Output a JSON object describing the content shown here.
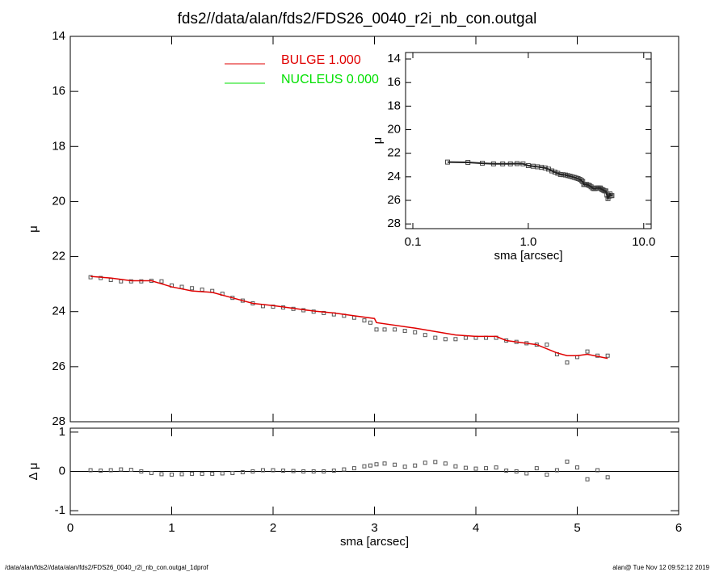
{
  "title": "fds2//data/alan/fds2/FDS26_0040_r2i_nb_con.outgal",
  "footer": {
    "left": "/data/alan/fds2//data/alan/fds2/FDS26_0040_r2i_nb_con.outgal_1dprof",
    "right": "alan@  Tue Nov 12 09:52:12 2019"
  },
  "chart_data": [
    {
      "type": "scatter",
      "ylabel": "μ",
      "xlim": [
        0,
        6
      ],
      "xticks": [
        0,
        1,
        2,
        3,
        4,
        5,
        6
      ],
      "ylim": [
        28,
        14
      ],
      "yticks": [
        14,
        16,
        18,
        20,
        22,
        24,
        26,
        28
      ],
      "x": [
        0.2,
        0.3,
        0.4,
        0.5,
        0.6,
        0.7,
        0.8,
        0.9,
        1.0,
        1.1,
        1.2,
        1.3,
        1.4,
        1.5,
        1.6,
        1.7,
        1.8,
        1.9,
        2.0,
        2.1,
        2.2,
        2.3,
        2.4,
        2.5,
        2.6,
        2.7,
        2.8,
        2.9,
        2.96,
        3.02,
        3.1,
        3.2,
        3.3,
        3.4,
        3.5,
        3.6,
        3.7,
        3.8,
        3.9,
        4.0,
        4.1,
        4.2,
        4.3,
        4.4,
        4.5,
        4.6,
        4.7,
        4.8,
        4.9,
        5.0,
        5.1,
        5.2,
        5.3
      ],
      "values": [
        22.75,
        22.78,
        22.85,
        22.9,
        22.9,
        22.9,
        22.88,
        22.9,
        23.05,
        23.1,
        23.15,
        23.2,
        23.25,
        23.35,
        23.5,
        23.6,
        23.7,
        23.8,
        23.82,
        23.85,
        23.9,
        23.95,
        24.0,
        24.05,
        24.1,
        24.15,
        24.22,
        24.32,
        24.4,
        24.65,
        24.65,
        24.65,
        24.7,
        24.75,
        24.85,
        24.95,
        25.0,
        25.0,
        24.95,
        24.95,
        24.95,
        24.95,
        25.05,
        25.1,
        25.15,
        25.2,
        25.2,
        25.55,
        25.85,
        25.65,
        25.45,
        25.6,
        25.6
      ],
      "color": "#555555",
      "series": [
        {
          "name": "BULGE  1.000",
          "color": "#e00000",
          "x": [
            0.2,
            0.4,
            0.6,
            0.8,
            1.0,
            1.2,
            1.4,
            1.6,
            1.8,
            2.0,
            2.2,
            2.4,
            2.6,
            2.8,
            3.0,
            3.02,
            3.4,
            3.8,
            4.0,
            4.2,
            4.3,
            4.6,
            4.8,
            4.9,
            5.0,
            5.1,
            5.3
          ],
          "values": [
            22.72,
            22.78,
            22.88,
            22.88,
            23.1,
            23.25,
            23.3,
            23.5,
            23.7,
            23.78,
            23.88,
            23.98,
            24.05,
            24.15,
            24.25,
            24.4,
            24.6,
            24.85,
            24.9,
            24.9,
            25.05,
            25.2,
            25.5,
            25.6,
            25.6,
            25.55,
            25.7
          ]
        },
        {
          "name": "NUCLEUS  0.000",
          "color": "#00e000"
        }
      ]
    },
    {
      "type": "residual",
      "xlabel": "sma [arcsec]",
      "ylabel": "Δ μ",
      "xlim": [
        0,
        6
      ],
      "xticks": [
        0,
        1,
        2,
        3,
        4,
        5,
        6
      ],
      "ylim": [
        -1.1,
        1.1
      ],
      "yticks": [
        -1,
        0,
        1
      ],
      "values": [
        0.03,
        0.02,
        0.03,
        0.05,
        0.04,
        0.0,
        -0.04,
        -0.07,
        -0.08,
        -0.07,
        -0.06,
        -0.06,
        -0.06,
        -0.05,
        -0.04,
        -0.02,
        0.0,
        0.03,
        0.03,
        0.02,
        0.01,
        0.0,
        0.0,
        0.0,
        0.02,
        0.05,
        0.08,
        0.13,
        0.15,
        0.18,
        0.2,
        0.17,
        0.12,
        0.15,
        0.22,
        0.24,
        0.2,
        0.13,
        0.09,
        0.07,
        0.08,
        0.1,
        0.02,
        0.0,
        -0.05,
        0.08,
        -0.08,
        0.03,
        0.25,
        0.1,
        -0.2,
        0.03,
        -0.15
      ],
      "color": "#555555"
    },
    {
      "type": "inset",
      "xlabel": "sma [arcsec]",
      "ylabel": "μ",
      "xlog": true,
      "xlim": [
        0.0865,
        11.6
      ],
      "xticks": [
        0.1,
        {
          "value": 1,
          "label": "1.0"
        },
        {
          "value": 10,
          "label": "10.0"
        }
      ],
      "ylim": [
        28.4,
        13.45
      ],
      "yticks": [
        14,
        16,
        18,
        20,
        22,
        24,
        26,
        28
      ],
      "color": "#444444"
    }
  ]
}
